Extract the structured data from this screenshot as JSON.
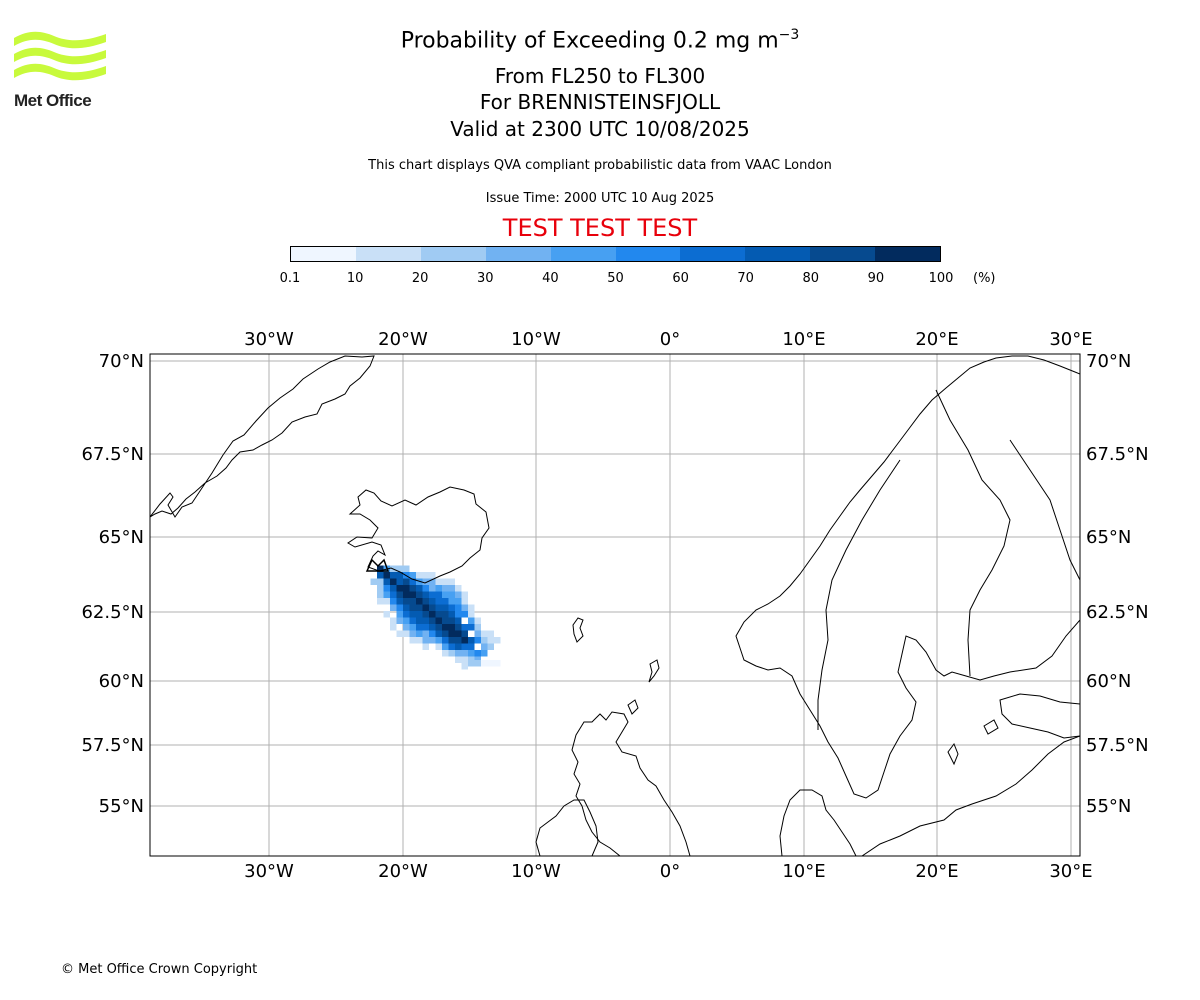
{
  "logo": {
    "text": "Met Office",
    "wave_color": "#c8fa3c"
  },
  "title": {
    "main": "Probability of Exceeding 0.2 mg m",
    "superscript": "−3",
    "level": "From FL250 to FL300",
    "volcano": "For BRENNISTEINSFJOLL",
    "valid": "Valid at 2300 UTC 10/08/2025"
  },
  "subtitle": "This chart displays QVA compliant probabilistic data from VAAC London",
  "issue_time": "Issue Time: 2000 UTC 10 Aug 2025",
  "test_banner": "TEST TEST TEST",
  "colorbar": {
    "ticks": [
      "0.1",
      "10",
      "20",
      "30",
      "40",
      "50",
      "60",
      "70",
      "80",
      "90",
      "100"
    ],
    "unit": "(%)",
    "colors": [
      "#eff6ff",
      "#c9e0f7",
      "#a0cbf3",
      "#71b2f2",
      "#47a0f2",
      "#2288ee",
      "#0c6dd2",
      "#045bb2",
      "#064a8f",
      "#022b5e"
    ]
  },
  "map": {
    "lon_labels": [
      "30°W",
      "20°W",
      "10°W",
      "0°",
      "10°E",
      "20°E",
      "30°E"
    ],
    "lat_labels": [
      "70°N",
      "67.5°N",
      "65°N",
      "62.5°N",
      "60°N",
      "57.5°N",
      "55°N"
    ]
  },
  "copyright": "© Met Office Crown Copyright"
}
